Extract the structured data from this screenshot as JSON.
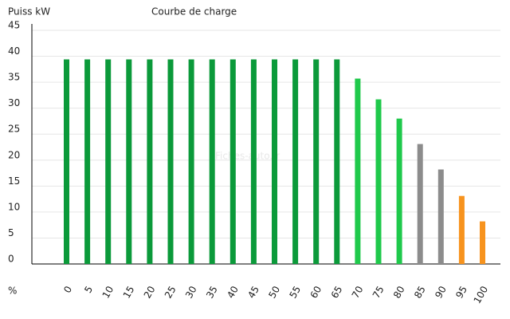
{
  "chart_data": {
    "type": "bar",
    "title": "Courbe de charge",
    "y_label": "Puiss kW",
    "x_label": "%",
    "watermark": "Fiches-auto.fr",
    "categories": [
      "0",
      "5",
      "10",
      "15",
      "20",
      "25",
      "30",
      "35",
      "40",
      "45",
      "50",
      "55",
      "60",
      "65",
      "70",
      "75",
      "80",
      "85",
      "90",
      "95",
      "100"
    ],
    "values": [
      39.4,
      39.4,
      39.4,
      39.4,
      39.4,
      39.4,
      39.4,
      39.4,
      39.4,
      39.4,
      39.4,
      39.4,
      39.4,
      39.4,
      35.7,
      31.7,
      28,
      23.1,
      18.2,
      13.1,
      8.2
    ],
    "colors": [
      "#0b9a3a",
      "#0b9a3a",
      "#0b9a3a",
      "#0b9a3a",
      "#0b9a3a",
      "#0b9a3a",
      "#0b9a3a",
      "#0b9a3a",
      "#0b9a3a",
      "#0b9a3a",
      "#0b9a3a",
      "#0b9a3a",
      "#0b9a3a",
      "#0b9a3a",
      "#1fc94b",
      "#1fc94b",
      "#1fc94b",
      "#8c8c8c",
      "#8c8c8c",
      "#f7931e",
      "#f7931e"
    ],
    "ylim": [
      0,
      45
    ],
    "yticks": [
      0,
      5,
      10,
      15,
      20,
      25,
      30,
      35,
      40,
      45
    ],
    "grid": true
  }
}
